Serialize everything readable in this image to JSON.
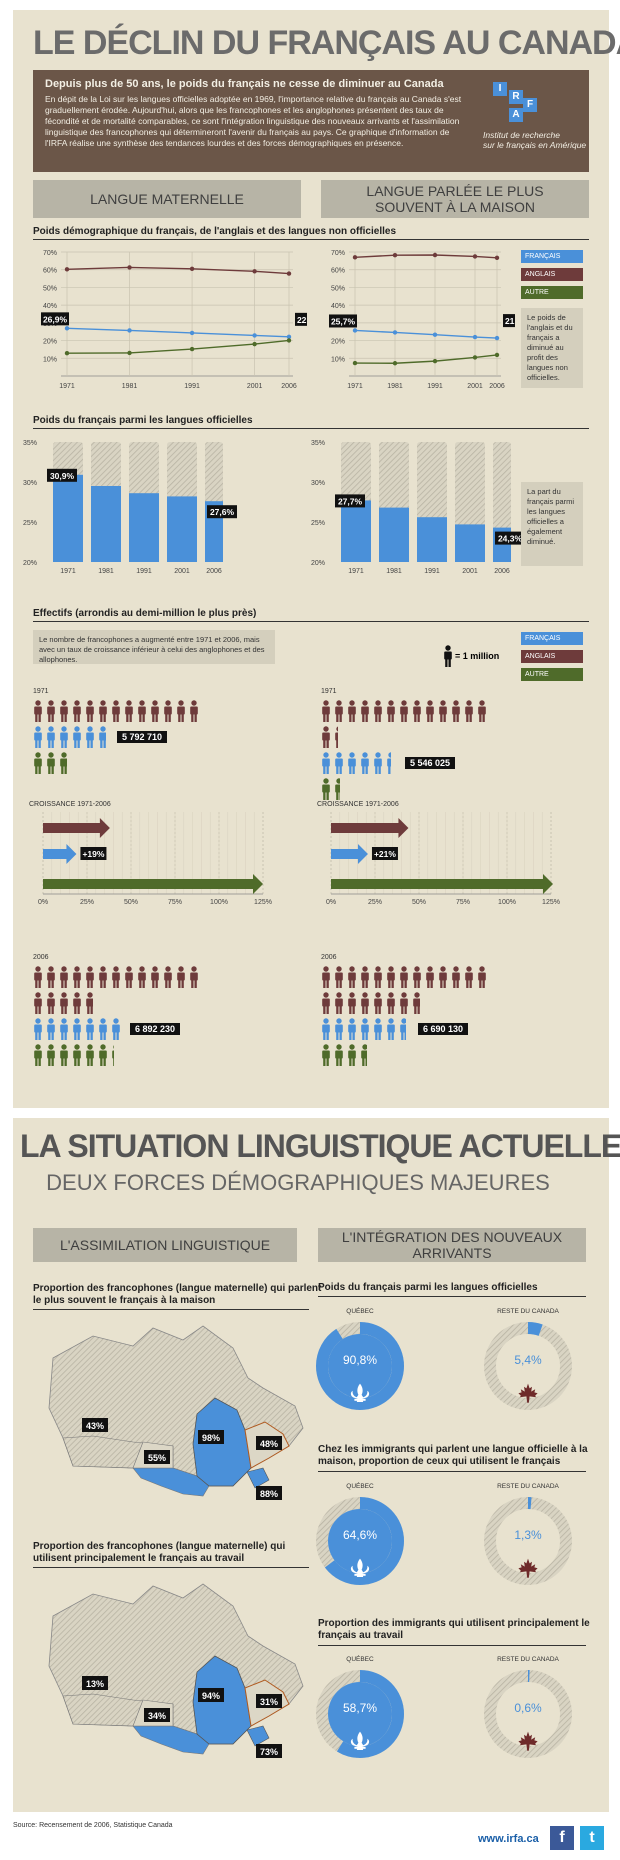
{
  "title": "LE DÉCLIN DU FRANÇAIS AU CANADA",
  "intro": {
    "headline": "Depuis plus de 50 ans, le poids du français ne cesse de diminuer au Canada",
    "body": "En dépit de la Loi sur les langues officielles adoptée en 1969, l'importance relative du français au Canada s'est graduellement érodée. Aujourd'hui, alors que les francophones et les anglophones présentent des taux de fécondité et de mortalité comparables, ce sont l'intégration linguistique des nouveaux arrivants et l'assimilation linguistique des francophones qui détermineront l'avenir du français au pays. Ce graphique d'information de l'IRFA réalise une synthèse des tendances lourdes et des forces démographiques en présence.",
    "logo_letters": [
      "I",
      "R",
      "F",
      "A"
    ],
    "logo_caption_1": "Institut de recherche",
    "logo_caption_2": "sur le français en Amérique"
  },
  "headers": {
    "left": "LANGUE MATERNELLE",
    "right_1": "LANGUE PARLÉE LE PLUS",
    "right_2": "SOUVENT À LA MAISON"
  },
  "colors": {
    "francais": "#4a90d9",
    "anglais": "#6e3b3b",
    "autre": "#4f6b2a",
    "panel": "#e8e2cf"
  },
  "legend": [
    "FRANÇAIS",
    "ANGLAIS",
    "AUTRE"
  ],
  "sec1": "Poids démographique du français, de l'anglais et des langues non officielles",
  "sec2": "Poids du français parmi les langues officielles",
  "sec3": "Effectifs (arrondis au demi-million le plus près)",
  "note1": "Le poids de l'anglais et du français a diminué au profit des langues non officielles.",
  "note2": "La part du français parmi les langues officielles a également diminué.",
  "note3": "Le nombre de francophones a augmenté entre 1971 et 2006, mais avec un taux de croissance inférieur à celui des anglophones et des allophones.",
  "unit_label": "= 1 million",
  "chart_data": [
    {
      "type": "line",
      "panel": "LANGUE MATERNELLE",
      "x": [
        "1971",
        "1981",
        "1991",
        "2001",
        "2006"
      ],
      "ylim": [
        0,
        70
      ],
      "yticks": [
        "10%",
        "20%",
        "30%",
        "40%",
        "50%",
        "60%",
        "70%"
      ],
      "series": [
        {
          "name": "ANGLAIS",
          "values": [
            60.2,
            61.3,
            60.5,
            59.1,
            57.8
          ]
        },
        {
          "name": "FRANÇAIS",
          "values": [
            26.9,
            25.7,
            24.3,
            22.9,
            22.1
          ]
        },
        {
          "name": "AUTRE",
          "values": [
            12.9,
            13.0,
            15.2,
            18.0,
            20.1
          ]
        }
      ],
      "labels": [
        "26,9%",
        "22,1%"
      ]
    },
    {
      "type": "line",
      "panel": "LANGUE PARLÉE LE PLUS SOUVENT À LA MAISON",
      "x": [
        "1971",
        "1981",
        "1991",
        "2001",
        "2006"
      ],
      "ylim": [
        0,
        70
      ],
      "yticks": [
        "10%",
        "20%",
        "30%",
        "40%",
        "50%",
        "60%",
        "70%"
      ],
      "series": [
        {
          "name": "ANGLAIS",
          "values": [
            67.0,
            68.2,
            68.3,
            67.5,
            66.7
          ]
        },
        {
          "name": "FRANÇAIS",
          "values": [
            25.7,
            24.6,
            23.3,
            22.0,
            21.4
          ]
        },
        {
          "name": "AUTRE",
          "values": [
            7.3,
            7.2,
            8.4,
            10.5,
            11.9
          ]
        }
      ],
      "labels": [
        "25,7%",
        "21,4%"
      ]
    },
    {
      "type": "bar",
      "panel": "LANGUE MATERNELLE",
      "categories": [
        "1971",
        "1981",
        "1991",
        "2001",
        "2006"
      ],
      "values": [
        30.9,
        29.5,
        28.6,
        28.2,
        27.6
      ],
      "ylim": [
        20,
        35
      ],
      "yticks": [
        "20%",
        "25%",
        "30%",
        "35%"
      ],
      "labels": [
        "30,9%",
        "27,6%"
      ]
    },
    {
      "type": "bar",
      "panel": "LANGUE PARLÉE LE PLUS SOUVENT À LA MAISON",
      "categories": [
        "1971",
        "1981",
        "1991",
        "2001",
        "2006"
      ],
      "values": [
        27.7,
        26.8,
        25.6,
        24.7,
        24.3
      ],
      "ylim": [
        20,
        35
      ],
      "yticks": [
        "20%",
        "25%",
        "30%",
        "35%"
      ],
      "labels": [
        "27,7%",
        "24,3%"
      ]
    },
    {
      "type": "pictogram",
      "panel": "LANGUE MATERNELLE",
      "years": [
        "1971",
        "2006"
      ],
      "series": [
        {
          "name": "ANGLAIS",
          "values": [
            13.0,
            17.8
          ]
        },
        {
          "name": "FRANÇAIS",
          "values": [
            5.8,
            6.9
          ]
        },
        {
          "name": "AUTRE",
          "values": [
            2.8,
            6.3
          ]
        }
      ],
      "labels": [
        "5 792 710",
        "6 892 230"
      ]
    },
    {
      "type": "pictogram",
      "panel": "LANGUE PARLÉE LE PLUS SOUVENT À LA MAISON",
      "years": [
        "1971",
        "2006"
      ],
      "series": [
        {
          "name": "ANGLAIS",
          "values": [
            14.4,
            20.8
          ]
        },
        {
          "name": "FRANÇAIS",
          "values": [
            5.5,
            6.7
          ]
        },
        {
          "name": "AUTRE",
          "values": [
            1.6,
            3.7
          ]
        }
      ],
      "labels": [
        "5 546 025",
        "6 690 130"
      ]
    },
    {
      "type": "bar",
      "orientation": "horizontal",
      "panel": "LANGUE MATERNELLE",
      "title": "CROISSANCE 1971-2006",
      "xlim": [
        0,
        125
      ],
      "xticks": [
        "0%",
        "25%",
        "50%",
        "75%",
        "100%",
        "125%"
      ],
      "series": [
        {
          "name": "ANGLAIS",
          "values": [
            38
          ]
        },
        {
          "name": "FRANÇAIS",
          "values": [
            19
          ]
        },
        {
          "name": "AUTRE",
          "values": [
            125
          ]
        }
      ],
      "labels": [
        "+19%"
      ]
    },
    {
      "type": "bar",
      "orientation": "horizontal",
      "panel": "LANGUE PARLÉE LE PLUS SOUVENT À LA MAISON",
      "title": "CROISSANCE 1971-2006",
      "xlim": [
        0,
        125
      ],
      "xticks": [
        "0%",
        "25%",
        "50%",
        "75%",
        "100%",
        "125%"
      ],
      "series": [
        {
          "name": "ANGLAIS",
          "values": [
            44
          ]
        },
        {
          "name": "FRANÇAIS",
          "values": [
            21
          ]
        },
        {
          "name": "AUTRE",
          "values": [
            129
          ]
        }
      ],
      "labels": [
        "+21%"
      ]
    },
    {
      "type": "pie",
      "title": "Poids du français parmi les langues officielles",
      "groups": [
        {
          "name": "QUÉBEC",
          "value": 90.8,
          "label": "90,8%"
        },
        {
          "name": "RESTE DU CANADA",
          "value": 5.4,
          "label": "5,4%"
        }
      ]
    },
    {
      "type": "pie",
      "title": "Chez les immigrants qui parlent une langue officielle à la maison, proportion de ceux qui utilisent le français",
      "groups": [
        {
          "name": "QUÉBEC",
          "value": 64.6,
          "label": "64,6%"
        },
        {
          "name": "RESTE DU CANADA",
          "value": 1.3,
          "label": "1,3%"
        }
      ]
    },
    {
      "type": "pie",
      "title": "Proportion des immigrants qui utilisent principalement le français au travail",
      "groups": [
        {
          "name": "QUÉBEC",
          "value": 58.7,
          "label": "58,7%"
        },
        {
          "name": "RESTE DU CANADA",
          "value": 0.6,
          "label": "0,6%"
        }
      ]
    }
  ],
  "section2": {
    "title": "LA SITUATION LINGUISTIQUE ACTUELLE",
    "subtitle": "DEUX FORCES DÉMOGRAPHIQUES MAJEURES",
    "left_header": "L'ASSIMILATION LINGUISTIQUE",
    "right_header": "L'INTÉGRATION DES NOUVEAUX ARRIVANTS",
    "map1_title": "Proportion des francophones (langue maternelle) qui parlent le plus souvent le français à la maison",
    "map1_values": [
      "43%",
      "55%",
      "98%",
      "48%",
      "88%"
    ],
    "map2_title": "Proportion des francophones (langue maternelle) qui utilisent principalement le français au travail",
    "map2_values": [
      "13%",
      "34%",
      "94%",
      "31%",
      "73%"
    ]
  },
  "footer": {
    "source": "Source: Recensement de 2006, Statistique Canada",
    "url": "www.irfa.ca",
    "fb": "f",
    "tw": "t"
  }
}
